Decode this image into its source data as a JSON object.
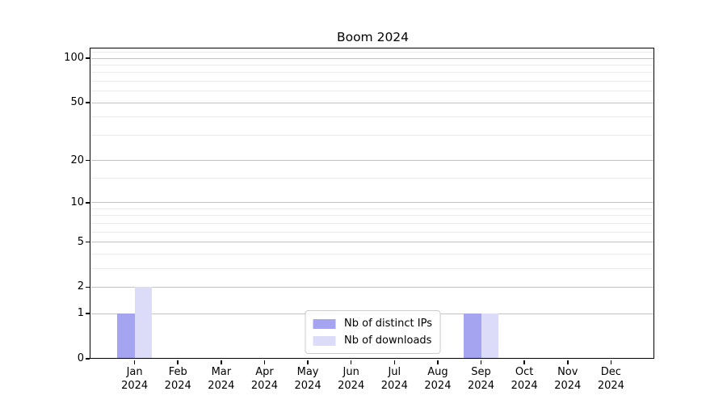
{
  "chart_data": {
    "type": "bar",
    "title": "Boom 2024",
    "months": [
      "Jan",
      "Feb",
      "Mar",
      "Apr",
      "May",
      "Jun",
      "Jul",
      "Aug",
      "Sep",
      "Oct",
      "Nov",
      "Dec"
    ],
    "year": "2024",
    "series": [
      {
        "name": "Nb of distinct IPs",
        "color": "#a4a4f0",
        "values": [
          1,
          0,
          0,
          0,
          0,
          0,
          0,
          0,
          1,
          0,
          0,
          0
        ]
      },
      {
        "name": "Nb of downloads",
        "color": "#dcdcf8",
        "values": [
          2,
          0,
          0,
          0,
          0,
          0,
          0,
          0,
          1,
          0,
          0,
          0
        ]
      }
    ],
    "yscale": "log1p",
    "yticks": [
      0,
      1,
      2,
      5,
      10,
      20,
      50,
      100
    ],
    "yminor_ticks": [
      3,
      4,
      6,
      7,
      8,
      9,
      15,
      30,
      40,
      60,
      70,
      80,
      90,
      110
    ],
    "ylim": [
      0,
      115
    ],
    "grid": "horizontal-only",
    "legend_position": "lower center",
    "colors": {
      "bar_distinct_ips": "#a4a4f0",
      "bar_downloads": "#dcdcf8",
      "grid_major": "#c3c3c3",
      "grid_minor": "#ebebeb",
      "axis": "#000000"
    }
  }
}
